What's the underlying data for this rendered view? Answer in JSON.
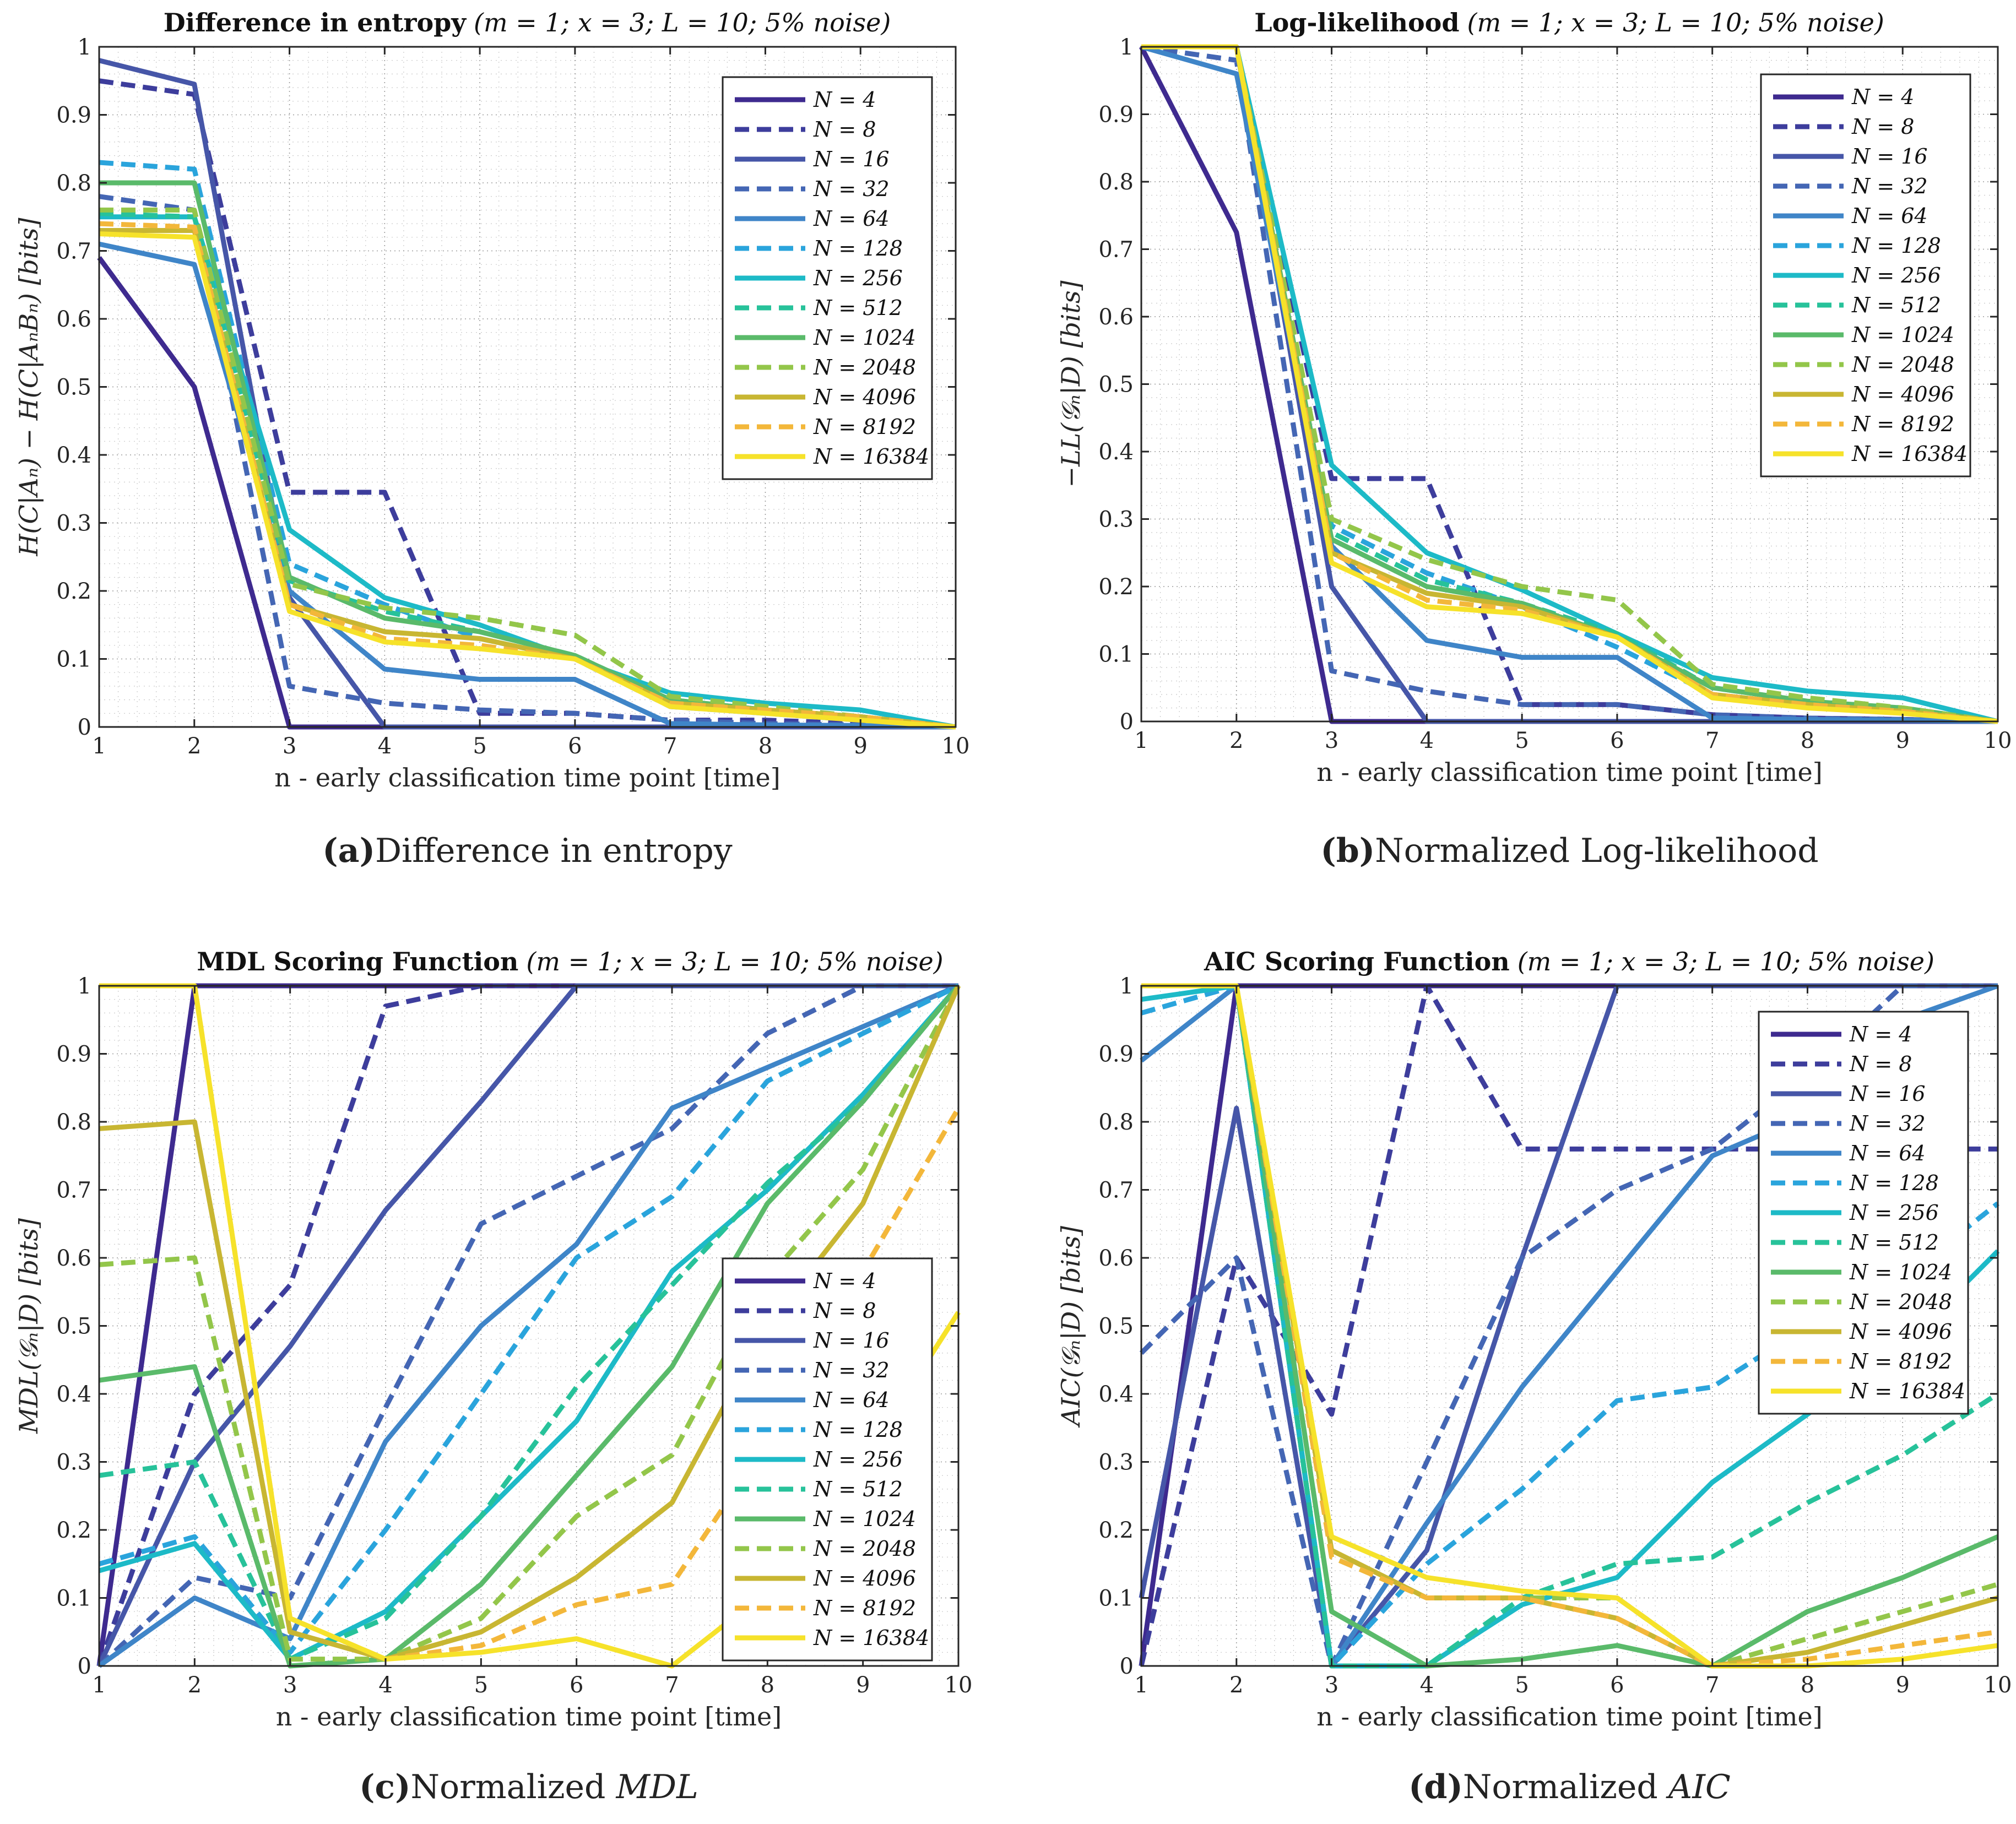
{
  "figure": {
    "colors": {
      "N4": "#3e2a8f",
      "N8": "#3d3d9c",
      "N16": "#4656a8",
      "N32": "#4466b4",
      "N64": "#3f85c8",
      "N128": "#2aa4dc",
      "N256": "#1dbac7",
      "N512": "#27c29a",
      "N1024": "#5aba6a",
      "N2048": "#93c64a",
      "N4096": "#c8b632",
      "N8192": "#f3b73a",
      "N16384": "#f6e22a"
    }
  },
  "chart_data": [
    {
      "id": "a",
      "type": "line",
      "title_bold": "Difference in entropy",
      "title_params": "(m = 1; x = 3; L = 10; 5% noise)",
      "xlabel": "n - early classification time point [time]",
      "ylabel": "H(C|Aₙ) − H(C|AₙBₙ) [bits]",
      "caption_letter": "(a)",
      "caption_text": "Difference in entropy",
      "xlim": [
        1,
        10
      ],
      "ylim": [
        0,
        1
      ],
      "xticks": [
        "1",
        "2",
        "3",
        "4",
        "5",
        "6",
        "7",
        "8",
        "9",
        "10"
      ],
      "yticks": [
        "0",
        "0.1",
        "0.2",
        "0.3",
        "0.4",
        "0.5",
        "0.6",
        "0.7",
        "0.8",
        "0.9",
        "1"
      ],
      "legend_position": "top-right",
      "x": [
        1,
        2,
        3,
        4,
        5,
        6,
        7,
        8,
        9,
        10
      ],
      "series": [
        {
          "name": "N = 4",
          "dash": false,
          "values": [
            0.69,
            0.5,
            0,
            0,
            0,
            0,
            0,
            0,
            0,
            0
          ]
        },
        {
          "name": "N = 8",
          "dash": true,
          "values": [
            0.95,
            0.93,
            0.345,
            0.345,
            0.02,
            0.02,
            0.01,
            0.01,
            0.005,
            0
          ]
        },
        {
          "name": "N = 16",
          "dash": false,
          "values": [
            0.98,
            0.945,
            0.19,
            0,
            0,
            0,
            0,
            0,
            0,
            0
          ]
        },
        {
          "name": "N = 32",
          "dash": true,
          "values": [
            0.78,
            0.76,
            0.06,
            0.035,
            0.025,
            0.02,
            0.01,
            0.005,
            0.003,
            0
          ]
        },
        {
          "name": "N = 64",
          "dash": false,
          "values": [
            0.71,
            0.68,
            0.2,
            0.085,
            0.07,
            0.07,
            0.005,
            0.003,
            0.002,
            0
          ]
        },
        {
          "name": "N = 128",
          "dash": true,
          "values": [
            0.83,
            0.82,
            0.24,
            0.18,
            0.13,
            0.1,
            0.03,
            0.02,
            0.01,
            0
          ]
        },
        {
          "name": "N = 256",
          "dash": false,
          "values": [
            0.75,
            0.75,
            0.29,
            0.19,
            0.15,
            0.1,
            0.05,
            0.035,
            0.025,
            0
          ]
        },
        {
          "name": "N = 512",
          "dash": true,
          "values": [
            0.755,
            0.75,
            0.215,
            0.17,
            0.14,
            0.105,
            0.04,
            0.025,
            0.015,
            0
          ]
        },
        {
          "name": "N = 1024",
          "dash": false,
          "values": [
            0.8,
            0.8,
            0.22,
            0.16,
            0.14,
            0.105,
            0.04,
            0.025,
            0.015,
            0
          ]
        },
        {
          "name": "N = 2048",
          "dash": true,
          "values": [
            0.76,
            0.76,
            0.21,
            0.175,
            0.16,
            0.135,
            0.045,
            0.03,
            0.015,
            0
          ]
        },
        {
          "name": "N = 4096",
          "dash": false,
          "values": [
            0.73,
            0.73,
            0.18,
            0.14,
            0.13,
            0.1,
            0.035,
            0.025,
            0.015,
            0
          ]
        },
        {
          "name": "N = 8192",
          "dash": true,
          "values": [
            0.74,
            0.735,
            0.18,
            0.13,
            0.12,
            0.1,
            0.035,
            0.025,
            0.015,
            0
          ]
        },
        {
          "name": "N = 16384",
          "dash": false,
          "values": [
            0.725,
            0.72,
            0.17,
            0.125,
            0.115,
            0.1,
            0.03,
            0.02,
            0.01,
            0
          ]
        }
      ]
    },
    {
      "id": "b",
      "type": "line",
      "title_bold": "Log-likelihood",
      "title_params": "(m = 1; x = 3; L = 10; 5% noise)",
      "xlabel": "n - early classification time point [time]",
      "ylabel": "−LL(𝒢ₙ|D) [bits]",
      "caption_letter": "(b)",
      "caption_text": "Normalized Log-likelihood",
      "xlim": [
        1,
        10
      ],
      "ylim": [
        0,
        1
      ],
      "xticks": [
        "1",
        "2",
        "3",
        "4",
        "5",
        "6",
        "7",
        "8",
        "9",
        "10"
      ],
      "yticks": [
        "0",
        "0.1",
        "0.2",
        "0.3",
        "0.4",
        "0.5",
        "0.6",
        "0.7",
        "0.8",
        "0.9",
        "1"
      ],
      "legend_position": "top-right",
      "x": [
        1,
        2,
        3,
        4,
        5,
        6,
        7,
        8,
        9,
        10
      ],
      "series": [
        {
          "name": "N = 4",
          "dash": false,
          "values": [
            1,
            0.725,
            0,
            0,
            0,
            0,
            0,
            0,
            0,
            0
          ]
        },
        {
          "name": "N = 8",
          "dash": true,
          "values": [
            1,
            1,
            0.36,
            0.36,
            0.025,
            0.025,
            0.01,
            0.005,
            0.003,
            0
          ]
        },
        {
          "name": "N = 16",
          "dash": false,
          "values": [
            1,
            1,
            0.2,
            0,
            0,
            0,
            0,
            0,
            0,
            0
          ]
        },
        {
          "name": "N = 32",
          "dash": true,
          "values": [
            1,
            0.98,
            0.075,
            0.045,
            0.025,
            0.025,
            0.01,
            0.005,
            0.003,
            0
          ]
        },
        {
          "name": "N = 64",
          "dash": false,
          "values": [
            1,
            0.96,
            0.26,
            0.12,
            0.095,
            0.095,
            0.005,
            0.003,
            0.002,
            0
          ]
        },
        {
          "name": "N = 128",
          "dash": true,
          "values": [
            1,
            1,
            0.29,
            0.22,
            0.17,
            0.11,
            0.04,
            0.025,
            0.015,
            0
          ]
        },
        {
          "name": "N = 256",
          "dash": false,
          "values": [
            1,
            1,
            0.38,
            0.25,
            0.195,
            0.13,
            0.065,
            0.045,
            0.035,
            0
          ]
        },
        {
          "name": "N = 512",
          "dash": true,
          "values": [
            1,
            1,
            0.28,
            0.21,
            0.175,
            0.13,
            0.05,
            0.03,
            0.02,
            0
          ]
        },
        {
          "name": "N = 1024",
          "dash": false,
          "values": [
            1,
            1,
            0.27,
            0.2,
            0.175,
            0.125,
            0.05,
            0.03,
            0.02,
            0
          ]
        },
        {
          "name": "N = 2048",
          "dash": true,
          "values": [
            1,
            1,
            0.3,
            0.24,
            0.2,
            0.18,
            0.055,
            0.035,
            0.02,
            0
          ]
        },
        {
          "name": "N = 4096",
          "dash": false,
          "values": [
            1,
            1,
            0.25,
            0.19,
            0.17,
            0.125,
            0.04,
            0.025,
            0.015,
            0
          ]
        },
        {
          "name": "N = 8192",
          "dash": true,
          "values": [
            1,
            1,
            0.25,
            0.18,
            0.165,
            0.125,
            0.04,
            0.025,
            0.015,
            0
          ]
        },
        {
          "name": "N = 16384",
          "dash": false,
          "values": [
            1,
            1,
            0.235,
            0.17,
            0.16,
            0.125,
            0.035,
            0.02,
            0.012,
            0
          ]
        }
      ]
    },
    {
      "id": "c",
      "type": "line",
      "title_bold": "MDL Scoring Function",
      "title_params": "(m = 1; x = 3; L = 10; 5% noise)",
      "xlabel": "n - early classification time point [time]",
      "ylabel": "MDL(𝒢ₙ|D) [bits]",
      "caption_letter": "(c)",
      "caption_text": "Normalized ",
      "caption_italic": "MDL",
      "xlim": [
        1,
        10
      ],
      "ylim": [
        0,
        1
      ],
      "xticks": [
        "1",
        "2",
        "3",
        "4",
        "5",
        "6",
        "7",
        "8",
        "9",
        "10"
      ],
      "yticks": [
        "0",
        "0.1",
        "0.2",
        "0.3",
        "0.4",
        "0.5",
        "0.6",
        "0.7",
        "0.8",
        "0.9",
        "1"
      ],
      "legend_position": "bottom-right",
      "x": [
        1,
        2,
        3,
        4,
        5,
        6,
        7,
        8,
        9,
        10
      ],
      "series": [
        {
          "name": "N = 4",
          "dash": false,
          "values": [
            0,
            1,
            1,
            1,
            1,
            1,
            1,
            1,
            1,
            1
          ]
        },
        {
          "name": "N = 8",
          "dash": true,
          "values": [
            0,
            0.4,
            0.56,
            0.97,
            1,
            1,
            1,
            1,
            1,
            1
          ]
        },
        {
          "name": "N = 16",
          "dash": false,
          "values": [
            0,
            0.3,
            0.47,
            0.67,
            0.83,
            1,
            1,
            1,
            1,
            1
          ]
        },
        {
          "name": "N = 32",
          "dash": true,
          "values": [
            0,
            0.13,
            0.1,
            0.38,
            0.65,
            0.72,
            0.79,
            0.93,
            1,
            1
          ]
        },
        {
          "name": "N = 64",
          "dash": false,
          "values": [
            0,
            0.1,
            0.04,
            0.33,
            0.5,
            0.62,
            0.82,
            0.88,
            0.94,
            1
          ]
        },
        {
          "name": "N = 128",
          "dash": true,
          "values": [
            0.15,
            0.19,
            0.02,
            0.2,
            0.4,
            0.6,
            0.69,
            0.86,
            0.93,
            1
          ]
        },
        {
          "name": "N = 256",
          "dash": false,
          "values": [
            0.14,
            0.18,
            0.01,
            0.08,
            0.22,
            0.36,
            0.58,
            0.7,
            0.84,
            1
          ]
        },
        {
          "name": "N = 512",
          "dash": true,
          "values": [
            0.28,
            0.3,
            0.01,
            0.07,
            0.22,
            0.41,
            0.56,
            0.71,
            0.83,
            1
          ]
        },
        {
          "name": "N = 1024",
          "dash": false,
          "values": [
            0.42,
            0.44,
            0,
            0.01,
            0.12,
            0.28,
            0.44,
            0.68,
            0.83,
            1
          ]
        },
        {
          "name": "N = 2048",
          "dash": true,
          "values": [
            0.59,
            0.6,
            0.01,
            0.01,
            0.07,
            0.22,
            0.31,
            0.57,
            0.73,
            1
          ]
        },
        {
          "name": "N = 4096",
          "dash": false,
          "values": [
            0.79,
            0.8,
            0.05,
            0.01,
            0.05,
            0.13,
            0.24,
            0.5,
            0.68,
            1
          ]
        },
        {
          "name": "N = 8192",
          "dash": true,
          "values": [
            1,
            1,
            0.07,
            0.01,
            0.03,
            0.09,
            0.12,
            0.33,
            0.58,
            0.82
          ]
        },
        {
          "name": "N = 16384",
          "dash": false,
          "values": [
            1,
            1,
            0.07,
            0.01,
            0.02,
            0.04,
            0,
            0.11,
            0.3,
            0.52
          ]
        }
      ]
    },
    {
      "id": "d",
      "type": "line",
      "title_bold": "AIC Scoring Function",
      "title_params": "(m = 1; x = 3; L = 10; 5% noise)",
      "xlabel": "n - early classification time point [time]",
      "ylabel": "AIC(𝒢ₙ|D) [bits]",
      "caption_letter": "(d)",
      "caption_text": "Normalized ",
      "caption_italic": "AIC",
      "xlim": [
        1,
        10
      ],
      "ylim": [
        0,
        1
      ],
      "xticks": [
        "1",
        "2",
        "3",
        "4",
        "5",
        "6",
        "7",
        "8",
        "9",
        "10"
      ],
      "yticks": [
        "0",
        "0.1",
        "0.2",
        "0.3",
        "0.4",
        "0.5",
        "0.6",
        "0.7",
        "0.8",
        "0.9",
        "1"
      ],
      "legend_position": "top-right",
      "x": [
        1,
        2,
        3,
        4,
        5,
        6,
        7,
        8,
        9,
        10
      ],
      "series": [
        {
          "name": "N = 4",
          "dash": false,
          "values": [
            0,
            1,
            1,
            1,
            1,
            1,
            1,
            1,
            1,
            1
          ]
        },
        {
          "name": "N = 8",
          "dash": true,
          "values": [
            0,
            0.6,
            0.37,
            1,
            0.76,
            0.76,
            0.76,
            0.76,
            0.76,
            0.76
          ]
        },
        {
          "name": "N = 16",
          "dash": false,
          "values": [
            0.1,
            0.82,
            0,
            0.17,
            0.6,
            1,
            1,
            1,
            1,
            1
          ]
        },
        {
          "name": "N = 32",
          "dash": true,
          "values": [
            0.46,
            0.6,
            0,
            0.3,
            0.6,
            0.7,
            0.76,
            0.87,
            1,
            1
          ]
        },
        {
          "name": "N = 64",
          "dash": false,
          "values": [
            0.89,
            1,
            0,
            0.21,
            0.41,
            0.58,
            0.75,
            0.81,
            0.95,
            1
          ]
        },
        {
          "name": "N = 128",
          "dash": true,
          "values": [
            0.96,
            1,
            0,
            0.15,
            0.26,
            0.39,
            0.41,
            0.5,
            0.57,
            0.68
          ]
        },
        {
          "name": "N = 256",
          "dash": false,
          "values": [
            0.98,
            1,
            0,
            0,
            0.09,
            0.13,
            0.27,
            0.37,
            0.47,
            0.61
          ]
        },
        {
          "name": "N = 512",
          "dash": true,
          "values": [
            1,
            1,
            0,
            0,
            0.1,
            0.15,
            0.16,
            0.24,
            0.31,
            0.4
          ]
        },
        {
          "name": "N = 1024",
          "dash": false,
          "values": [
            1,
            1,
            0.08,
            0,
            0.01,
            0.03,
            0,
            0.08,
            0.13,
            0.19
          ]
        },
        {
          "name": "N = 2048",
          "dash": true,
          "values": [
            1,
            1,
            0.16,
            0.1,
            0.1,
            0.1,
            0,
            0.04,
            0.08,
            0.12
          ]
        },
        {
          "name": "N = 4096",
          "dash": false,
          "values": [
            1,
            1,
            0.17,
            0.1,
            0.1,
            0.07,
            0,
            0.02,
            0.06,
            0.1
          ]
        },
        {
          "name": "N = 8192",
          "dash": true,
          "values": [
            1,
            1,
            0.16,
            0.1,
            0.1,
            0.07,
            0,
            0.01,
            0.03,
            0.05
          ]
        },
        {
          "name": "N = 16384",
          "dash": false,
          "values": [
            1,
            1,
            0.19,
            0.13,
            0.11,
            0.1,
            0,
            0,
            0.01,
            0.03
          ]
        }
      ]
    }
  ]
}
